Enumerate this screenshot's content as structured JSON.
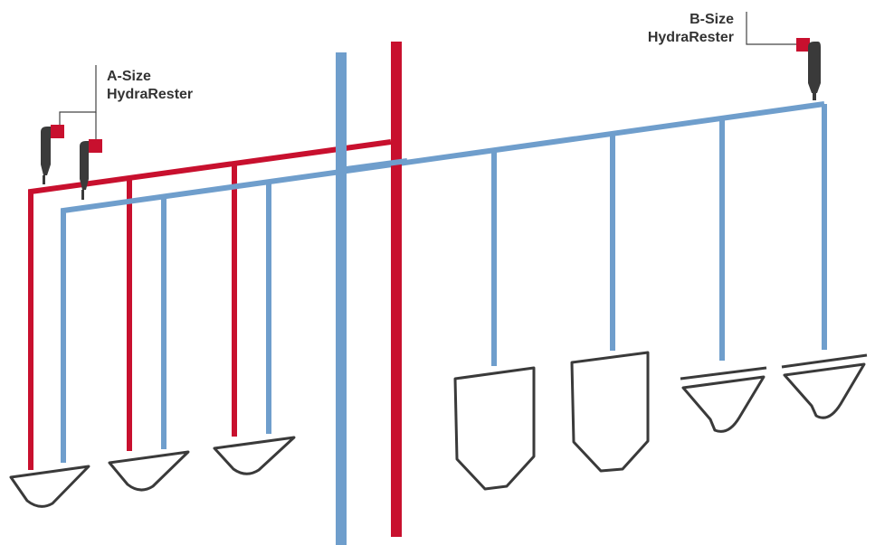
{
  "colors": {
    "red": "#c8102e",
    "blue": "#6f9ecc",
    "gray": "#3a3a3a",
    "bracket": "#444444",
    "background": "#ffffff"
  },
  "labels": {
    "a_size_line1": "A-Size",
    "a_size_line2": "HydraRester",
    "b_size_line1": "B-Size",
    "b_size_line2": "HydraRester"
  }
}
